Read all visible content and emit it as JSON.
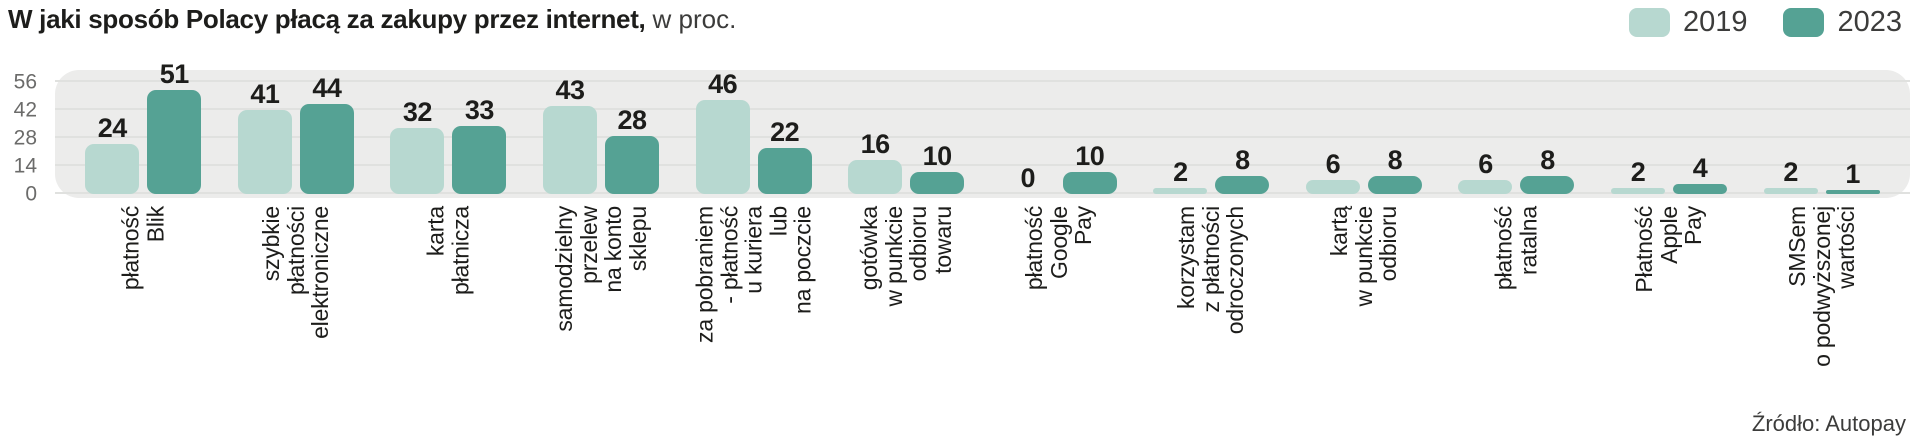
{
  "header": {
    "title_bold": "W jaki sposób Polacy płacą za zakupy przez internet,",
    "title_rest": "w proc."
  },
  "chart_data": {
    "type": "bar",
    "title": "W jaki sposób Polacy płacą za zakupy przez internet,",
    "subtitle": "w proc.",
    "legend_position": "top-right",
    "grid": true,
    "ylim": [
      0,
      56
    ],
    "y_ticks": [
      0,
      14,
      28,
      42,
      56
    ],
    "categories": [
      "płatność\nBlik",
      "szybkie\npłatności\nelektroniczne",
      "karta\npłatnicza",
      "samodzielny\nprzelew\nna konto\nsklepu",
      "za pobraniem\n- płatność\nu kuriera\nlub\nna poczcie",
      "gotówka\nw punkcie\nodbioru\ntowaru",
      "płatność\nGoogle\nPay",
      "korzystam\nz płatności\nodroczonych",
      "kartą\nw punkcie\nodbioru",
      "płatność\nratalna",
      "Płatność\nApple\nPay",
      "SMSem\no podwyższonej\nwartości"
    ],
    "series": [
      {
        "name": "2019",
        "color": "#b7d8d0",
        "values": [
          24,
          41,
          32,
          43,
          46,
          16,
          0,
          2,
          6,
          6,
          2,
          2
        ]
      },
      {
        "name": "2023",
        "color": "#55a294",
        "values": [
          51,
          44,
          33,
          28,
          22,
          10,
          10,
          8,
          8,
          8,
          4,
          1
        ]
      }
    ],
    "source": "Źródło: Autopay"
  }
}
